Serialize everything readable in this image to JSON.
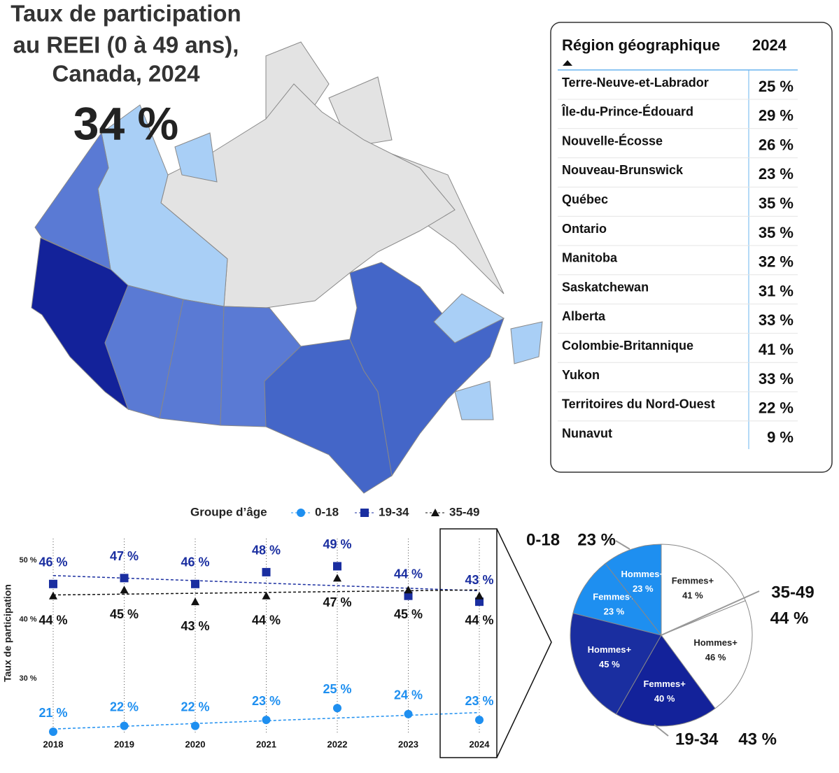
{
  "title": [
    "Taux de participation",
    "au REEI (0 à 49 ans),",
    "Canada, 2024"
  ],
  "headline": "34 %",
  "table": {
    "header": [
      "Région géographique",
      "2024"
    ],
    "rows": [
      [
        "Terre-Neuve-et-Labrador",
        "25 %"
      ],
      [
        "Île-du-Prince-Édouard",
        "29 %"
      ],
      [
        "Nouvelle-Écosse",
        "26 %"
      ],
      [
        "Nouveau-Brunswick",
        "23 %"
      ],
      [
        "Québec",
        "35 %"
      ],
      [
        "Ontario",
        "35 %"
      ],
      [
        "Manitoba",
        "32 %"
      ],
      [
        "Saskatchewan",
        "31 %"
      ],
      [
        "Alberta",
        "33 %"
      ],
      [
        "Colombie-Britannique",
        "41 %"
      ],
      [
        "Yukon",
        "33 %"
      ],
      [
        "Territoires du Nord-Ouest",
        "22 %"
      ],
      [
        "Nunavut",
        "9 %"
      ]
    ]
  },
  "chart_data": [
    {
      "type": "line",
      "y_label": "Taux de participation",
      "legend_title": "Groupe d’âge",
      "categories": [
        "2018",
        "2019",
        "2020",
        "2021",
        "2022",
        "2023",
        "2024"
      ],
      "series": [
        {
          "name": "0-18",
          "color": "#1e8ff0",
          "marker": "circle",
          "values": [
            21,
            22,
            22,
            23,
            25,
            24,
            23
          ],
          "value_labels": [
            "21 %",
            "22 %",
            "22 %",
            "23 %",
            "25 %",
            "24 %",
            "23 %"
          ]
        },
        {
          "name": "19-34",
          "color": "#1a2ea0",
          "marker": "square",
          "values": [
            46,
            47,
            46,
            48,
            49,
            44,
            43
          ],
          "value_labels": [
            "46 %",
            "47 %",
            "46 %",
            "48 %",
            "49 %",
            "44 %",
            "43 %"
          ]
        },
        {
          "name": "35-49",
          "color": "#111111",
          "marker": "triangle",
          "values": [
            44,
            45,
            43,
            44,
            47,
            45,
            44
          ],
          "value_labels": [
            "44 %",
            "45 %",
            "43 %",
            "44 %",
            "47 %",
            "45 %",
            "44 %"
          ]
        }
      ],
      "ylim": [
        20,
        52
      ],
      "yticks": [
        {
          "value": 30,
          "label": "30 %"
        },
        {
          "value": 40,
          "label": "40 %"
        },
        {
          "value": 50,
          "label": "50 %"
        }
      ],
      "trendline": true
    },
    {
      "type": "pie",
      "categories": [
        "Femmes+",
        "Hommes+",
        "Femmes+",
        "Hommes+",
        "Femmes+",
        "Hommes+"
      ],
      "values": [
        41,
        46,
        40,
        45,
        23,
        23
      ],
      "value_labels": [
        "41 %",
        "46 %",
        "40 %",
        "45 %",
        "23 %",
        "23 %"
      ],
      "colors": [
        "#ffffff",
        "#ffffff",
        "#13229a",
        "#1a2ea0",
        "#1e8ff0",
        "#1e8ff0"
      ],
      "groups": {
        "names": [
          "35-49",
          "19-34",
          "0-18"
        ],
        "values": [
          44,
          43,
          23
        ],
        "value_labels": [
          "44 %",
          "43 %",
          "23 %"
        ]
      }
    }
  ]
}
